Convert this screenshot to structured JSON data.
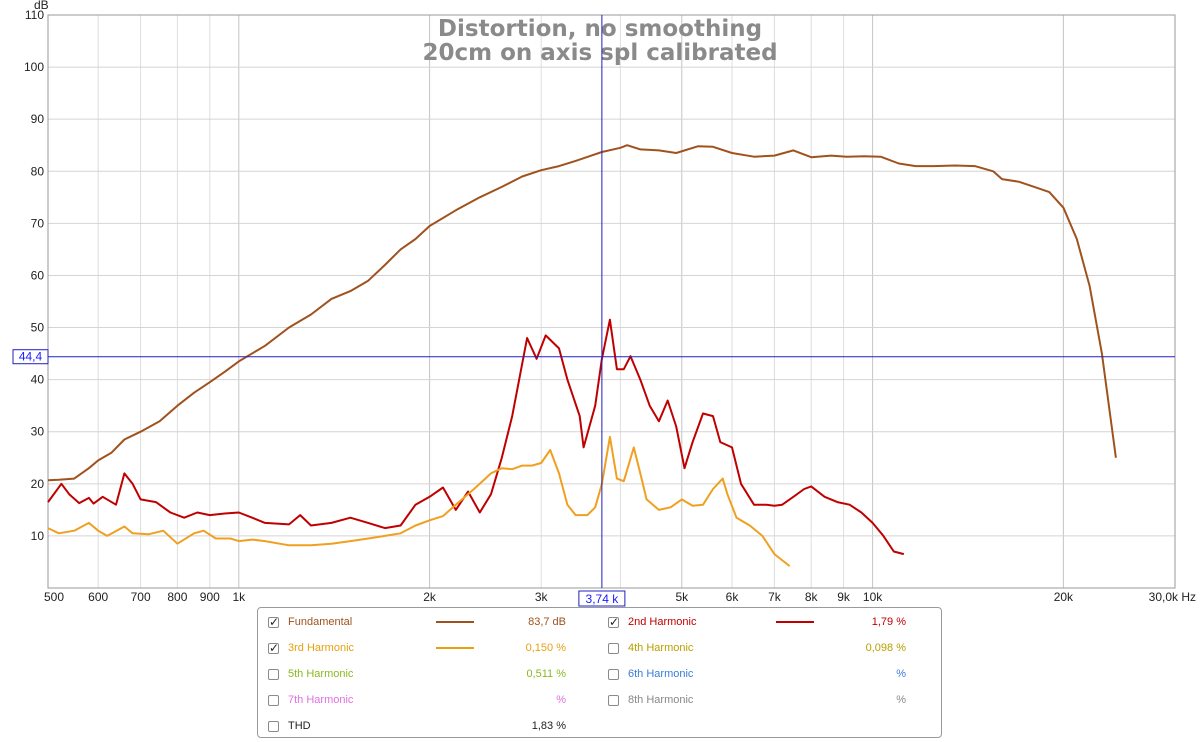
{
  "chart_data": {
    "type": "line",
    "title": "Distortion, no smoothing",
    "subtitle": "20cm on axis spl calibrated",
    "ylabel": "dB",
    "xunit": "Hz",
    "xscale": "log",
    "xlim": [
      500,
      30000
    ],
    "ylim": [
      0,
      110
    ],
    "yticks": [
      10,
      20,
      30,
      40,
      50,
      60,
      70,
      80,
      90,
      100,
      110
    ],
    "xticks": [
      {
        "v": 500,
        "label": "500"
      },
      {
        "v": 600,
        "label": "600"
      },
      {
        "v": 700,
        "label": "700"
      },
      {
        "v": 800,
        "label": "800"
      },
      {
        "v": 900,
        "label": "900"
      },
      {
        "v": 1000,
        "label": "1k"
      },
      {
        "v": 2000,
        "label": "2k"
      },
      {
        "v": 3000,
        "label": "3k"
      },
      {
        "v": 5000,
        "label": "5k"
      },
      {
        "v": 6000,
        "label": "6k"
      },
      {
        "v": 7000,
        "label": "7k"
      },
      {
        "v": 8000,
        "label": "8k"
      },
      {
        "v": 9000,
        "label": "9k"
      },
      {
        "v": 10000,
        "label": "10k"
      },
      {
        "v": 20000,
        "label": "20k"
      },
      {
        "v": 30000,
        "label": "30,0k Hz"
      }
    ],
    "cursor": {
      "x": 3740,
      "y": 44.4,
      "x_label": "3,74 k",
      "y_label": "44,4"
    },
    "grid": true,
    "series": [
      {
        "name": "Fundamental",
        "color": "#a0521e",
        "points": [
          [
            500,
            20.7
          ],
          [
            520,
            20.8
          ],
          [
            550,
            21
          ],
          [
            580,
            23
          ],
          [
            600,
            24.5
          ],
          [
            630,
            26
          ],
          [
            660,
            28.5
          ],
          [
            700,
            30
          ],
          [
            750,
            32
          ],
          [
            800,
            35
          ],
          [
            850,
            37.5
          ],
          [
            900,
            39.5
          ],
          [
            950,
            41.5
          ],
          [
            1000,
            43.5
          ],
          [
            1100,
            46.5
          ],
          [
            1200,
            50
          ],
          [
            1300,
            52.5
          ],
          [
            1400,
            55.5
          ],
          [
            1500,
            57
          ],
          [
            1600,
            59
          ],
          [
            1700,
            62
          ],
          [
            1800,
            65
          ],
          [
            1900,
            67
          ],
          [
            2000,
            69.5
          ],
          [
            2200,
            72.5
          ],
          [
            2400,
            75
          ],
          [
            2600,
            77
          ],
          [
            2800,
            79
          ],
          [
            3000,
            80.2
          ],
          [
            3200,
            81
          ],
          [
            3400,
            82
          ],
          [
            3600,
            83
          ],
          [
            3740,
            83.7
          ],
          [
            4000,
            84.5
          ],
          [
            4100,
            85
          ],
          [
            4300,
            84.2
          ],
          [
            4600,
            84
          ],
          [
            4900,
            83.5
          ],
          [
            5300,
            84.8
          ],
          [
            5600,
            84.7
          ],
          [
            6000,
            83.5
          ],
          [
            6500,
            82.8
          ],
          [
            7000,
            83
          ],
          [
            7500,
            84
          ],
          [
            8000,
            82.7
          ],
          [
            8600,
            83
          ],
          [
            9100,
            82.8
          ],
          [
            9700,
            82.9
          ],
          [
            10300,
            82.8
          ],
          [
            11000,
            81.5
          ],
          [
            11700,
            81
          ],
          [
            12500,
            81
          ],
          [
            13500,
            81.1
          ],
          [
            14500,
            81
          ],
          [
            15500,
            80
          ],
          [
            16000,
            78.5
          ],
          [
            17000,
            78
          ],
          [
            18000,
            77
          ],
          [
            19000,
            76
          ],
          [
            20000,
            73
          ],
          [
            21000,
            67
          ],
          [
            22000,
            58
          ],
          [
            23000,
            45
          ],
          [
            24200,
            25
          ]
        ]
      },
      {
        "name": "2nd Harmonic",
        "color": "#c00000",
        "points": [
          [
            500,
            16.5
          ],
          [
            525,
            20
          ],
          [
            540,
            18
          ],
          [
            560,
            16.3
          ],
          [
            580,
            17.3
          ],
          [
            590,
            16.2
          ],
          [
            610,
            17.5
          ],
          [
            640,
            16
          ],
          [
            660,
            22
          ],
          [
            680,
            20
          ],
          [
            700,
            17
          ],
          [
            740,
            16.5
          ],
          [
            780,
            14.5
          ],
          [
            820,
            13.5
          ],
          [
            860,
            14.5
          ],
          [
            900,
            14
          ],
          [
            950,
            14.3
          ],
          [
            1000,
            14.5
          ],
          [
            1050,
            13.5
          ],
          [
            1100,
            12.5
          ],
          [
            1200,
            12.2
          ],
          [
            1250,
            14
          ],
          [
            1300,
            12
          ],
          [
            1400,
            12.5
          ],
          [
            1500,
            13.5
          ],
          [
            1600,
            12.5
          ],
          [
            1700,
            11.5
          ],
          [
            1800,
            12
          ],
          [
            1900,
            16
          ],
          [
            2000,
            17.5
          ],
          [
            2100,
            19.3
          ],
          [
            2200,
            15
          ],
          [
            2300,
            18.5
          ],
          [
            2400,
            14.5
          ],
          [
            2500,
            18
          ],
          [
            2600,
            25
          ],
          [
            2700,
            33
          ],
          [
            2850,
            48
          ],
          [
            2950,
            44
          ],
          [
            3050,
            48.5
          ],
          [
            3200,
            46
          ],
          [
            3300,
            40
          ],
          [
            3450,
            33
          ],
          [
            3500,
            27
          ],
          [
            3650,
            35
          ],
          [
            3740,
            44
          ],
          [
            3850,
            51.5
          ],
          [
            3950,
            42
          ],
          [
            4050,
            42
          ],
          [
            4150,
            44.5
          ],
          [
            4300,
            40
          ],
          [
            4450,
            35
          ],
          [
            4600,
            32
          ],
          [
            4750,
            36
          ],
          [
            4900,
            31
          ],
          [
            5050,
            23
          ],
          [
            5200,
            28
          ],
          [
            5400,
            33.5
          ],
          [
            5600,
            33
          ],
          [
            5750,
            28
          ],
          [
            6000,
            27
          ],
          [
            6200,
            20
          ],
          [
            6500,
            16
          ],
          [
            6800,
            16
          ],
          [
            7000,
            15.8
          ],
          [
            7200,
            16
          ],
          [
            7500,
            17.5
          ],
          [
            7800,
            19
          ],
          [
            8000,
            19.5
          ],
          [
            8400,
            17.5
          ],
          [
            8800,
            16.5
          ],
          [
            9200,
            16
          ],
          [
            9600,
            14.5
          ],
          [
            10000,
            12.5
          ],
          [
            10400,
            10
          ],
          [
            10800,
            7
          ],
          [
            11200,
            6.5
          ]
        ]
      },
      {
        "name": "3rd Harmonic",
        "color": "#f0a020",
        "points": [
          [
            500,
            11.5
          ],
          [
            520,
            10.5
          ],
          [
            550,
            11
          ],
          [
            580,
            12.5
          ],
          [
            600,
            11
          ],
          [
            620,
            10
          ],
          [
            660,
            11.8
          ],
          [
            680,
            10.5
          ],
          [
            720,
            10.3
          ],
          [
            760,
            11
          ],
          [
            800,
            8.5
          ],
          [
            850,
            10.5
          ],
          [
            880,
            11
          ],
          [
            920,
            9.5
          ],
          [
            970,
            9.5
          ],
          [
            1000,
            9
          ],
          [
            1050,
            9.3
          ],
          [
            1100,
            9
          ],
          [
            1200,
            8.2
          ],
          [
            1300,
            8.2
          ],
          [
            1400,
            8.5
          ],
          [
            1500,
            9
          ],
          [
            1600,
            9.5
          ],
          [
            1700,
            10
          ],
          [
            1800,
            10.5
          ],
          [
            1900,
            12
          ],
          [
            2000,
            13
          ],
          [
            2100,
            13.8
          ],
          [
            2200,
            16
          ],
          [
            2350,
            19
          ],
          [
            2500,
            22
          ],
          [
            2600,
            23
          ],
          [
            2700,
            22.8
          ],
          [
            2800,
            23.5
          ],
          [
            2900,
            23.5
          ],
          [
            3000,
            24
          ],
          [
            3100,
            26.5
          ],
          [
            3200,
            22
          ],
          [
            3300,
            16
          ],
          [
            3400,
            14
          ],
          [
            3550,
            14
          ],
          [
            3650,
            15.5
          ],
          [
            3740,
            20
          ],
          [
            3850,
            29
          ],
          [
            3950,
            21
          ],
          [
            4050,
            20.5
          ],
          [
            4200,
            27
          ],
          [
            4300,
            22
          ],
          [
            4400,
            17
          ],
          [
            4600,
            15
          ],
          [
            4800,
            15.5
          ],
          [
            5000,
            17
          ],
          [
            5200,
            15.8
          ],
          [
            5400,
            16
          ],
          [
            5600,
            19
          ],
          [
            5800,
            21
          ],
          [
            5900,
            18
          ],
          [
            6100,
            13.5
          ],
          [
            6400,
            12
          ],
          [
            6700,
            10
          ],
          [
            7000,
            6.5
          ],
          [
            7400,
            4.2
          ]
        ]
      }
    ]
  },
  "legend": {
    "rows": [
      {
        "name": "Fundamental",
        "checked": true,
        "color": "#a0521e",
        "value": "83,7 dB",
        "has_line": true
      },
      {
        "name": "2nd Harmonic",
        "checked": true,
        "color": "#c00000",
        "value": "1,79 %",
        "has_line": true
      },
      {
        "name": "3rd Harmonic",
        "checked": true,
        "color": "#e8a010",
        "value": "0,150 %",
        "has_line": true
      },
      {
        "name": "4th Harmonic",
        "checked": false,
        "color": "#b8a000",
        "value": "0,098 %",
        "has_line": false
      },
      {
        "name": "5th Harmonic",
        "checked": false,
        "color": "#8cb820",
        "value": "0,511 %",
        "has_line": false
      },
      {
        "name": "6th Harmonic",
        "checked": false,
        "color": "#3a7cd8",
        "value": "%",
        "has_line": false
      },
      {
        "name": "7th Harmonic",
        "checked": false,
        "color": "#e070e0",
        "value": "%",
        "has_line": false
      },
      {
        "name": "8th Harmonic",
        "checked": false,
        "color": "#888888",
        "value": "%",
        "has_line": false
      },
      {
        "name": "THD",
        "checked": false,
        "color": "#222222",
        "value": "1,83 %",
        "has_line": false
      }
    ]
  }
}
